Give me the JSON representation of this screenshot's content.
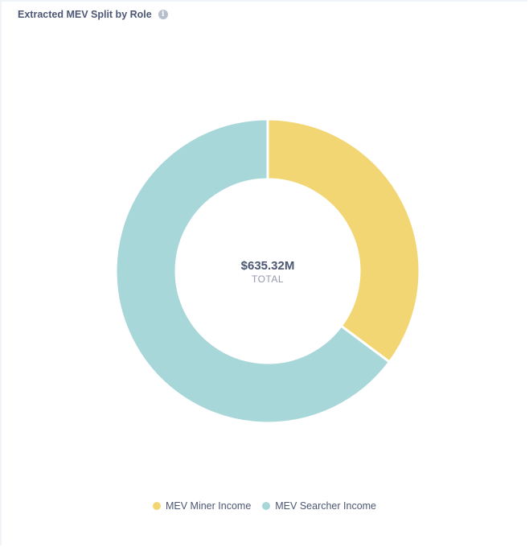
{
  "card": {
    "title": "Extracted MEV Split by Role",
    "info_icon": "info-icon"
  },
  "chart_data": {
    "type": "pie",
    "variant": "donut",
    "title": "Extracted MEV Split by Role",
    "center": {
      "value": "$635.32M",
      "label": "TOTAL"
    },
    "total": 635.32,
    "unit": "$M",
    "slices": [
      {
        "name": "MEV Miner Income",
        "share": 0.352,
        "color": "#f2d674"
      },
      {
        "name": "MEV Searcher Income",
        "share": 0.648,
        "color": "#a8d7da"
      }
    ],
    "legend_position": "bottom"
  }
}
